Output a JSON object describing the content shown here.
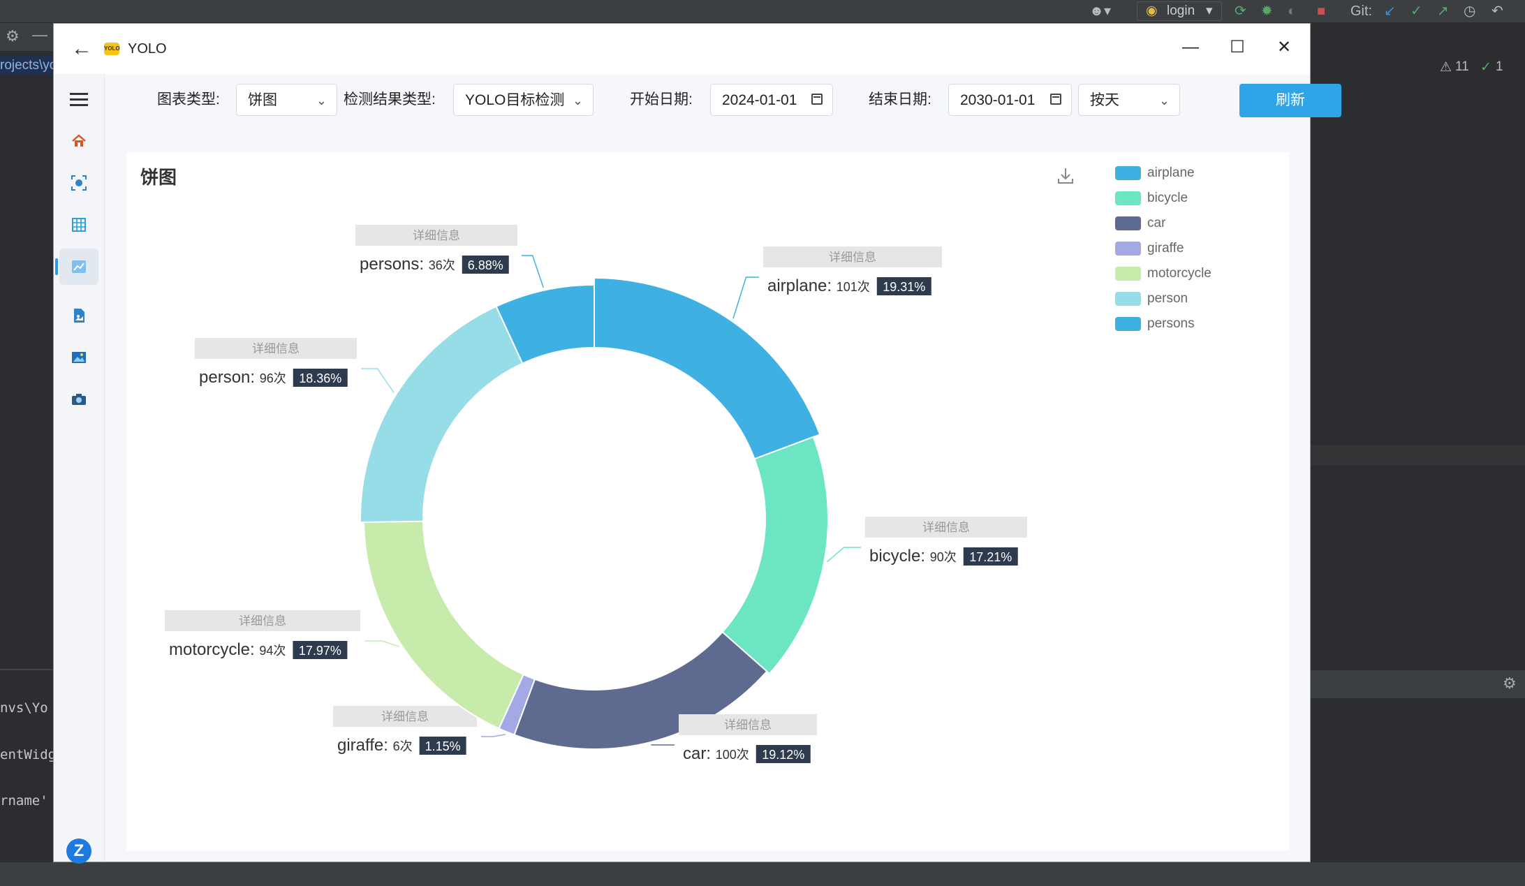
{
  "ide": {
    "login_label": "login",
    "git_label": "Git:",
    "warnings": "11",
    "checks": "1",
    "path_fragment": "rojects\\yo",
    "code_lines": [
      "nvs\\Yo",
      "entWidg",
      "rname'"
    ]
  },
  "window": {
    "title": "YOLO",
    "logo_text": "YOLO"
  },
  "toolbar": {
    "chart_type_label": "图表类型:",
    "chart_type_value": "饼图",
    "result_type_label": "检测结果类型:",
    "result_type_value": "YOLO目标检测",
    "start_date_label": "开始日期:",
    "start_date_value": "2024-01-01",
    "end_date_label": "结束日期:",
    "end_date_value": "2030-01-01",
    "granularity_value": "按天",
    "refresh_label": "刷新"
  },
  "panel": {
    "title": "饼图"
  },
  "chart_data": {
    "type": "pie",
    "title": "饼图",
    "donut": true,
    "tooltip_header": "详细信息",
    "count_suffix": "次",
    "legend_position": "top-right",
    "slices": [
      {
        "name": "airplane",
        "count": 101,
        "percent": "19.31%",
        "color": "#3eb0e2"
      },
      {
        "name": "bicycle",
        "count": 90,
        "percent": "17.21%",
        "color": "#6be5c2"
      },
      {
        "name": "car",
        "count": 100,
        "percent": "19.12%",
        "color": "#5e6a8f"
      },
      {
        "name": "giraffe",
        "count": 6,
        "percent": "1.15%",
        "color": "#a4a9e5"
      },
      {
        "name": "motorcycle",
        "count": 94,
        "percent": "17.97%",
        "color": "#c7ebaa"
      },
      {
        "name": "person",
        "count": 96,
        "percent": "18.36%",
        "color": "#97dde8"
      },
      {
        "name": "persons",
        "count": 36,
        "percent": "6.88%",
        "color": "#3eb0e2"
      }
    ]
  }
}
